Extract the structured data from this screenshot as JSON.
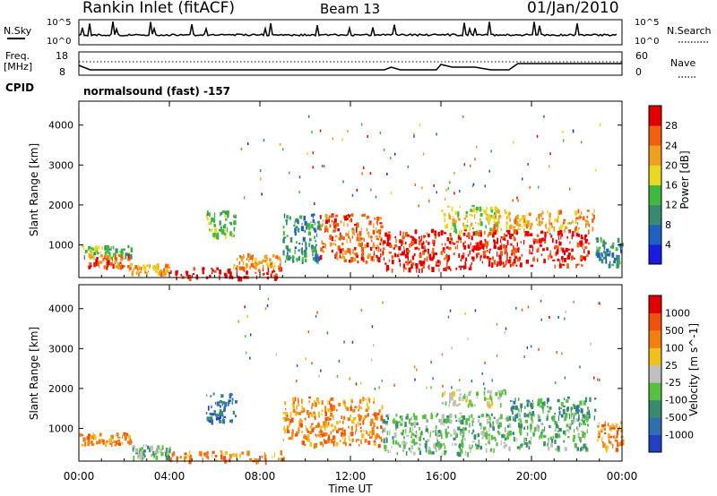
{
  "header": {
    "title": "Rankin Inlet (fitACF)",
    "beam": "Beam 13",
    "date": "01/Jan/2010"
  },
  "noise_panel": {
    "left_label": "N.Sky",
    "right_label": "N.Search",
    "left_ticks": [
      "10^5",
      "10^0"
    ],
    "right_ticks": [
      "10^5",
      "10^0"
    ]
  },
  "freq_panel": {
    "left_label": "Freq.",
    "left_unit": "[MHz]",
    "left_ticks": [
      "18",
      "8"
    ],
    "right_label": "Nave",
    "right_ticks": [
      "60",
      "0"
    ]
  },
  "cpid": {
    "label": "CPID",
    "value": "normalsound (fast) -157"
  },
  "colors": {
    "power_scale": [
      "#1a1ae0",
      "#2060c0",
      "#3a8a70",
      "#40b840",
      "#e8d820",
      "#f0a020",
      "#f06010",
      "#e00000"
    ],
    "velocity_scale": [
      "#2040c0",
      "#2f6fb0",
      "#3a8a70",
      "#58c040",
      "#c0c0c0",
      "#f0c020",
      "#f08010",
      "#f05010",
      "#e00000"
    ]
  },
  "chart_data": [
    {
      "type": "heatmap",
      "name": "power",
      "ylabel": "Slant Range [km]",
      "yticks": [
        1000,
        2000,
        3000,
        4000
      ],
      "ylim": [
        180,
        4600
      ],
      "xlim": [
        0,
        24
      ],
      "colorbar": {
        "label": "Power [dB]",
        "ticks": [
          "4",
          "8",
          "12",
          "16",
          "20",
          "24",
          "28"
        ]
      },
      "blobs": [
        {
          "t0": 0.0,
          "t1": 2.3,
          "r0": 700,
          "r1": 1000,
          "band": 3
        },
        {
          "t0": 0.4,
          "t1": 2.2,
          "r0": 450,
          "r1": 800,
          "band": 6
        },
        {
          "t0": 2.2,
          "t1": 4.0,
          "r0": 300,
          "r1": 550,
          "band": 5
        },
        {
          "t0": 4.0,
          "t1": 9.0,
          "r0": 200,
          "r1": 450,
          "band": 7
        },
        {
          "t0": 6.8,
          "t1": 8.9,
          "r0": 450,
          "r1": 800,
          "band": 5
        },
        {
          "t0": 5.6,
          "t1": 6.9,
          "r0": 1200,
          "r1": 1900,
          "band": 3
        },
        {
          "t0": 9.0,
          "t1": 10.6,
          "r0": 600,
          "r1": 1800,
          "band": 2
        },
        {
          "t0": 10.6,
          "t1": 13.4,
          "r0": 600,
          "r1": 1800,
          "band": 6
        },
        {
          "t0": 13.4,
          "t1": 17.5,
          "r0": 400,
          "r1": 1400,
          "band": 7
        },
        {
          "t0": 16.0,
          "t1": 18.5,
          "r0": 1300,
          "r1": 2000,
          "band": 4
        },
        {
          "t0": 17.5,
          "t1": 22.5,
          "r0": 500,
          "r1": 1400,
          "band": 7
        },
        {
          "t0": 18.2,
          "t1": 22.8,
          "r0": 1400,
          "r1": 1900,
          "band": 5
        },
        {
          "t0": 22.8,
          "t1": 24.0,
          "r0": 500,
          "r1": 1200,
          "band": 2
        }
      ]
    },
    {
      "type": "heatmap",
      "name": "velocity",
      "ylabel": "Slant Range [km]",
      "yticks": [
        1000,
        2000,
        3000,
        4000
      ],
      "ylim": [
        180,
        4600
      ],
      "xlim": [
        0,
        24
      ],
      "xlabel": "Time UT",
      "xticks": [
        "00:00",
        "04:00",
        "08:00",
        "12:00",
        "16:00",
        "20:00",
        "00:00"
      ],
      "colorbar": {
        "label": "Velocity [m s^-1]",
        "ticks": [
          "1000",
          "500",
          "100",
          "25",
          "-25",
          "-100",
          "-500",
          "-1000"
        ]
      },
      "blobs": [
        {
          "t0": 0.0,
          "t1": 2.3,
          "r0": 600,
          "r1": 900,
          "band": 6
        },
        {
          "t0": 2.3,
          "t1": 4.0,
          "r0": 300,
          "r1": 600,
          "band": 3
        },
        {
          "t0": 4.0,
          "t1": 9.0,
          "r0": 200,
          "r1": 450,
          "band": 6
        },
        {
          "t0": 5.6,
          "t1": 6.9,
          "r0": 1200,
          "r1": 1900,
          "band": 1
        },
        {
          "t0": 9.0,
          "t1": 13.4,
          "r0": 600,
          "r1": 1800,
          "band": 6
        },
        {
          "t0": 13.4,
          "t1": 17.5,
          "r0": 400,
          "r1": 1400,
          "band": 3
        },
        {
          "t0": 16.0,
          "t1": 19.0,
          "r0": 1600,
          "r1": 2000,
          "band": 4
        },
        {
          "t0": 17.5,
          "t1": 22.5,
          "r0": 500,
          "r1": 1400,
          "band": 3
        },
        {
          "t0": 19.0,
          "t1": 22.8,
          "r0": 1300,
          "r1": 1800,
          "band": 2
        },
        {
          "t0": 22.8,
          "t1": 24.0,
          "r0": 500,
          "r1": 1200,
          "band": 6
        }
      ]
    }
  ]
}
